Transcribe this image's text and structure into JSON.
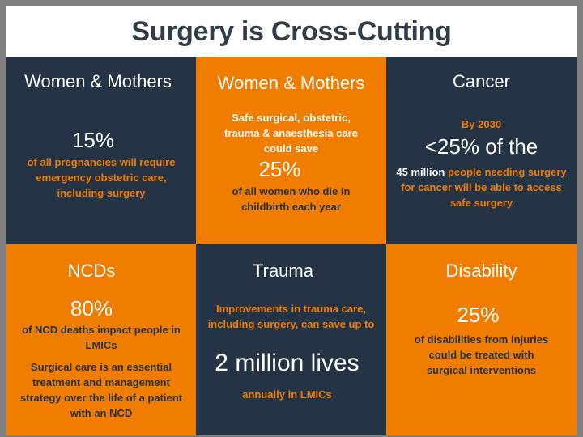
{
  "title": "Surgery is Cross-Cutting",
  "cells": [
    {
      "heading": "Women & Mothers",
      "stat": "15%",
      "text": "of all pregnancies will require emergency obstetric care, including surgery"
    },
    {
      "heading": "Women & Mothers",
      "intro": "Safe surgical, obstetric, trauma & anaesthesia care could save",
      "stat": "25%",
      "text": "of all women who die in childbirth each year"
    },
    {
      "heading": "Cancer",
      "intro": "By 2030",
      "stat": "<25% of the",
      "highlight": "45 million",
      "text": "people needing surgery for cancer will be able to access safe surgery"
    },
    {
      "heading": "NCDs",
      "stat": "80%",
      "text": "of NCD deaths impact people in LMICs",
      "text2": "Surgical care is an essential treatment and management strategy over the life of a patient with an NCD"
    },
    {
      "heading": "Trauma",
      "intro": "Improvements in trauma care, including surgery, can save up to",
      "stat": "2 million lives",
      "text": "annually in LMICs"
    },
    {
      "heading": "Disability",
      "stat": "25%",
      "text": "of disabilities from injuries could be treated with surgical interventions"
    }
  ],
  "colors": {
    "navy": "#243444",
    "orange": "#f07c00",
    "background": "#7f7f7f"
  }
}
